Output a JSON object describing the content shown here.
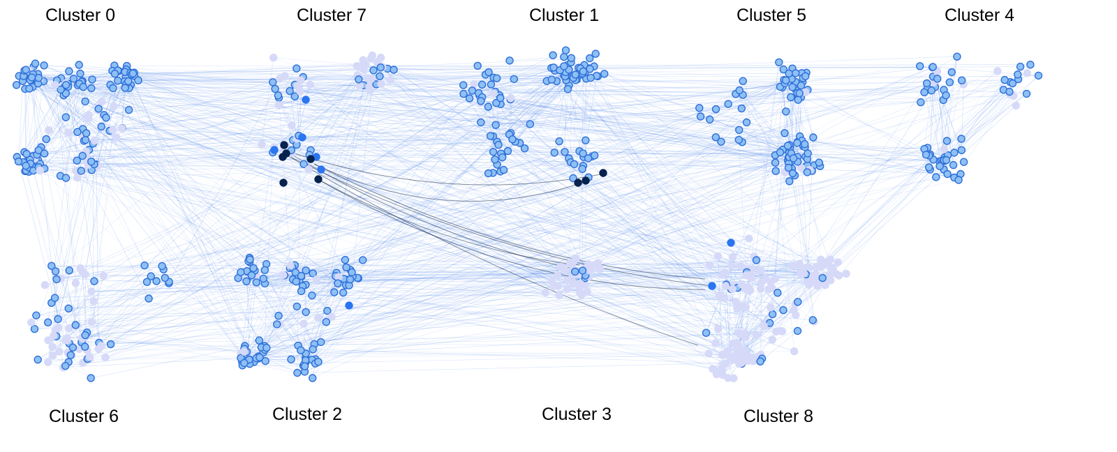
{
  "colors": {
    "background": "#ffffff",
    "edge_light": "#4f86ec",
    "edge_dark": "#1a2c4a",
    "node_fill": "#8ec0f5",
    "node_stroke": "#2e6fd8",
    "node_pale": "#d6daf8",
    "node_mid": "#2a75f0",
    "node_dark": "#06224f",
    "label": "#000000"
  },
  "clusters": [
    {
      "id": "c0",
      "label": "Cluster 0"
    },
    {
      "id": "c7",
      "label": "Cluster 7"
    },
    {
      "id": "c1",
      "label": "Cluster 1"
    },
    {
      "id": "c5",
      "label": "Cluster 5"
    },
    {
      "id": "c4",
      "label": "Cluster 4"
    },
    {
      "id": "c6",
      "label": "Cluster 6"
    },
    {
      "id": "c2",
      "label": "Cluster 2"
    },
    {
      "id": "c3",
      "label": "Cluster 3"
    },
    {
      "id": "c8",
      "label": "Cluster 8"
    }
  ]
}
